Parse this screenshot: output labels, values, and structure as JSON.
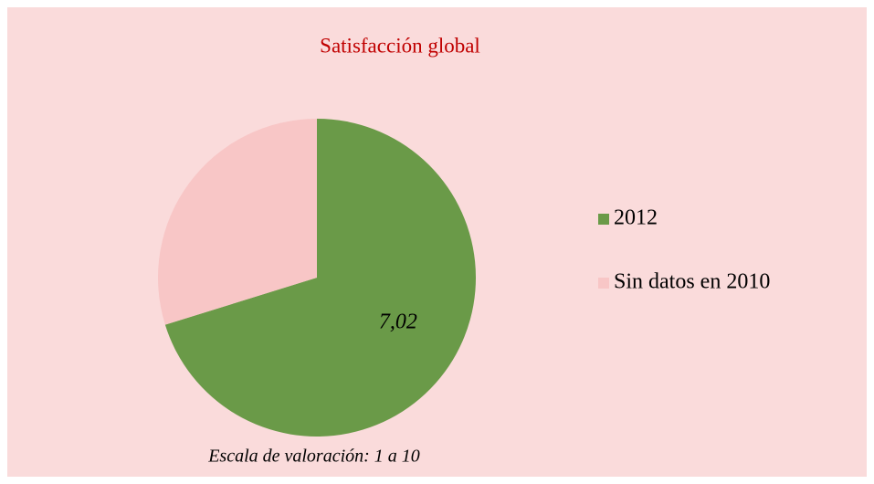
{
  "chart_data": {
    "type": "pie",
    "title": "Satisfacción global",
    "categories": [
      "2012",
      "Sin datos en 2010"
    ],
    "values": [
      7.02,
      2.98
    ],
    "value_labels": [
      "7,02",
      null
    ],
    "colors": [
      "#6a9a48",
      "#f8c6c6"
    ],
    "legend": "right",
    "annotation": "Escala de valoración: 1 a 10"
  }
}
